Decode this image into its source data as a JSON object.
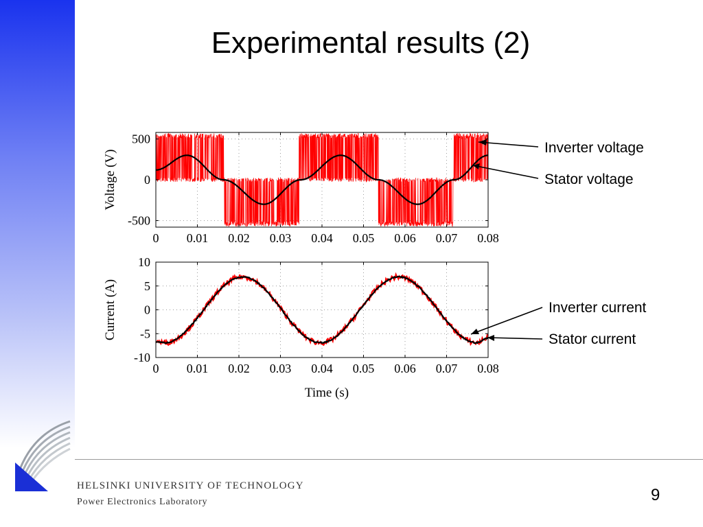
{
  "slide": {
    "title": "Experimental results (2)",
    "footer_university": "HELSINKI UNIVERSITY OF TECHNOLOGY",
    "footer_lab": "Power Electronics Laboratory",
    "page_number": "9"
  },
  "annotations": {
    "inverter_voltage": "Inverter voltage",
    "stator_voltage": "Stator voltage",
    "inverter_current": "Inverter current",
    "stator_current": "Stator current"
  },
  "colors": {
    "inverter": "#ff0000",
    "stator": "#000000",
    "accent_sidebar": "#1a33ee"
  },
  "chart_data": [
    {
      "type": "line",
      "ylabel": "Voltage (V)",
      "xlim": [
        0,
        0.08
      ],
      "ylim": [
        -580,
        580
      ],
      "yticks": [
        500,
        0,
        -500
      ],
      "ytick_labels": [
        "500",
        "0",
        "-500"
      ],
      "xticks": [
        0,
        0.01,
        0.02,
        0.03,
        0.04,
        0.05,
        0.06,
        0.07,
        0.08
      ],
      "xtick_labels": [
        "0",
        "0.01",
        "0.02",
        "0.03",
        "0.04",
        "0.05",
        "0.06",
        "0.07",
        "0.08"
      ],
      "grid": true,
      "series": [
        {
          "name": "Inverter voltage",
          "kind": "square_pwm",
          "levels": [
            540,
            0,
            -540
          ],
          "switch_times": [
            0.0,
            0.0163,
            0.0345,
            0.0536,
            0.0718
          ]
        },
        {
          "name": "Stator voltage",
          "kind": "sine",
          "x": [
            0,
            0.0075,
            0.0163,
            0.026,
            0.0349,
            0.0445,
            0.0536,
            0.063,
            0.0718,
            0.08
          ],
          "y": [
            120,
            300,
            0,
            -300,
            0,
            300,
            0,
            -300,
            0,
            300
          ]
        }
      ]
    },
    {
      "type": "line",
      "ylabel": "Current (A)",
      "xlabel": "Time (s)",
      "xlim": [
        0,
        0.08
      ],
      "ylim": [
        -10,
        10
      ],
      "yticks": [
        10,
        5,
        0,
        -5,
        -10
      ],
      "ytick_labels": [
        "10",
        "5",
        "0",
        "-5",
        "-10"
      ],
      "xticks": [
        0,
        0.01,
        0.02,
        0.03,
        0.04,
        0.05,
        0.06,
        0.07,
        0.08
      ],
      "xtick_labels": [
        "0",
        "0.01",
        "0.02",
        "0.03",
        "0.04",
        "0.05",
        "0.06",
        "0.07",
        "0.08"
      ],
      "grid": true,
      "series": [
        {
          "name": "Inverter current",
          "kind": "sine_ripple",
          "amplitude": 6.9,
          "x": [
            0,
            0.0021,
            0.0209,
            0.0397,
            0.0585,
            0.0773,
            0.08
          ],
          "y": [
            -6.6,
            -6.9,
            6.9,
            -6.9,
            6.9,
            -6.9,
            -5.8
          ]
        },
        {
          "name": "Stator current",
          "kind": "sine",
          "amplitude": 6.9,
          "x": [
            0,
            0.0021,
            0.0209,
            0.0397,
            0.0585,
            0.0773,
            0.08
          ],
          "y": [
            -6.7,
            -6.9,
            6.9,
            -6.9,
            6.9,
            -6.9,
            -5.9
          ]
        }
      ]
    }
  ]
}
